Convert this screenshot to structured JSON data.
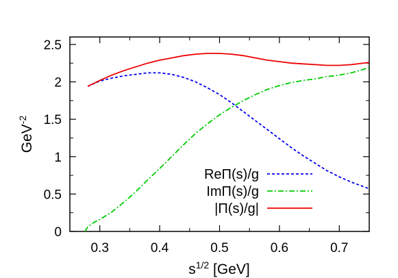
{
  "chart_data": {
    "type": "line",
    "xlabel": {
      "base": "s",
      "sup": "1/2",
      "rest": " [GeV]"
    },
    "ylabel": {
      "base": "GeV",
      "sup": "-2"
    },
    "xlim": [
      0.25,
      0.75
    ],
    "ylim": [
      0,
      2.6
    ],
    "x_ticks": [
      0.3,
      0.4,
      0.5,
      0.6,
      0.7
    ],
    "x_tick_labels": [
      "0.3",
      "0.4",
      "0.5",
      "0.6",
      "0.7"
    ],
    "y_ticks": [
      0,
      0.5,
      1,
      1.5,
      2,
      2.5
    ],
    "y_tick_labels": [
      "0",
      "0.5",
      "1",
      "1.5",
      "2",
      "2.5"
    ],
    "grid": false,
    "legend_position": "lower-right",
    "series": [
      {
        "name": "ReΠ(s)/g",
        "color": "#0000ee",
        "dash": "dashed",
        "x": [
          0.28,
          0.3,
          0.32,
          0.34,
          0.36,
          0.38,
          0.4,
          0.42,
          0.44,
          0.46,
          0.48,
          0.5,
          0.52,
          0.54,
          0.56,
          0.58,
          0.6,
          0.62,
          0.64,
          0.66,
          0.68,
          0.7,
          0.72,
          0.75
        ],
        "y": [
          1.94,
          2.01,
          2.05,
          2.08,
          2.1,
          2.12,
          2.12,
          2.1,
          2.06,
          2.0,
          1.92,
          1.83,
          1.72,
          1.6,
          1.48,
          1.36,
          1.24,
          1.12,
          1.01,
          0.91,
          0.81,
          0.73,
          0.66,
          0.57
        ]
      },
      {
        "name": "ImΠ(s)/g",
        "color": "#00cc00",
        "dash": "dash-dot",
        "x": [
          0.275,
          0.28,
          0.29,
          0.3,
          0.32,
          0.34,
          0.36,
          0.38,
          0.4,
          0.42,
          0.44,
          0.46,
          0.48,
          0.5,
          0.52,
          0.54,
          0.56,
          0.58,
          0.6,
          0.62,
          0.64,
          0.66,
          0.68,
          0.7,
          0.72,
          0.75
        ],
        "y": [
          0.0,
          0.06,
          0.12,
          0.16,
          0.26,
          0.39,
          0.53,
          0.69,
          0.84,
          1.0,
          1.16,
          1.31,
          1.44,
          1.56,
          1.66,
          1.75,
          1.83,
          1.9,
          1.95,
          1.99,
          2.02,
          2.04,
          2.07,
          2.09,
          2.12,
          2.19
        ]
      },
      {
        "name": "|Π(s)/g|",
        "color": "#ee0000",
        "dash": "solid",
        "x": [
          0.28,
          0.3,
          0.32,
          0.34,
          0.36,
          0.38,
          0.4,
          0.42,
          0.44,
          0.46,
          0.48,
          0.5,
          0.52,
          0.54,
          0.56,
          0.58,
          0.6,
          0.62,
          0.64,
          0.66,
          0.68,
          0.7,
          0.72,
          0.75
        ],
        "y": [
          1.94,
          2.02,
          2.09,
          2.15,
          2.2,
          2.25,
          2.29,
          2.32,
          2.35,
          2.37,
          2.38,
          2.38,
          2.37,
          2.35,
          2.32,
          2.29,
          2.27,
          2.25,
          2.24,
          2.23,
          2.22,
          2.22,
          2.23,
          2.26
        ]
      }
    ]
  }
}
